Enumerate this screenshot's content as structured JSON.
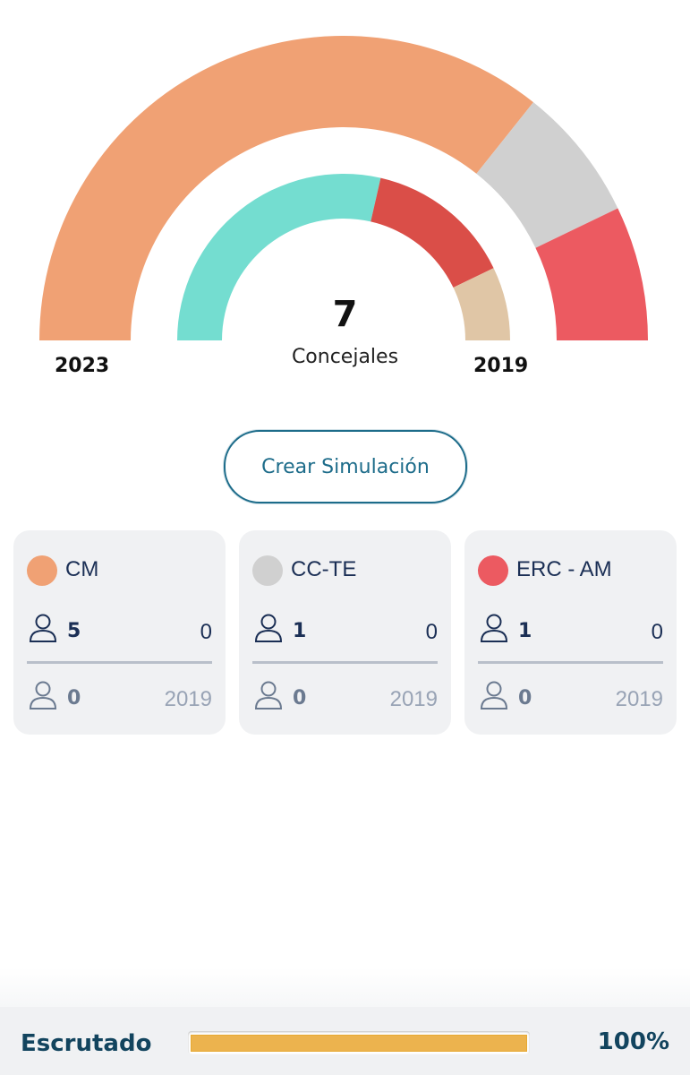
{
  "chart": {
    "type": "pie",
    "total": "7",
    "total_label": "Concejales",
    "outer_label": "2023",
    "inner_label": "2019",
    "outer": [
      {
        "name": "CM",
        "value": 5,
        "color": "#f0a174"
      },
      {
        "name": "CC-TE",
        "value": 1,
        "color": "#d0d0d0"
      },
      {
        "name": "ERC - AM",
        "value": 1,
        "color": "#ec5a61"
      }
    ],
    "inner": [
      {
        "name": "teal",
        "value": 4,
        "color": "#74ddd0"
      },
      {
        "name": "red",
        "value": 2,
        "color": "#da4e48"
      },
      {
        "name": "beige",
        "value": 1,
        "color": "#e0c6a6"
      }
    ]
  },
  "simulate_button": "Crear Simulación",
  "parties": [
    {
      "name": "CM",
      "color": "#f0a174",
      "seats": "5",
      "diff": "0",
      "seats_prev": "0",
      "year_prev": "2019"
    },
    {
      "name": "CC-TE",
      "color": "#d0d0d0",
      "seats": "1",
      "diff": "0",
      "seats_prev": "0",
      "year_prev": "2019"
    },
    {
      "name": "ERC - AM",
      "color": "#ec5a61",
      "seats": "1",
      "diff": "0",
      "seats_prev": "0",
      "year_prev": "2019"
    }
  ],
  "footer": {
    "label": "Escrutado",
    "progress_percent": 100,
    "progress_text": "100%"
  }
}
